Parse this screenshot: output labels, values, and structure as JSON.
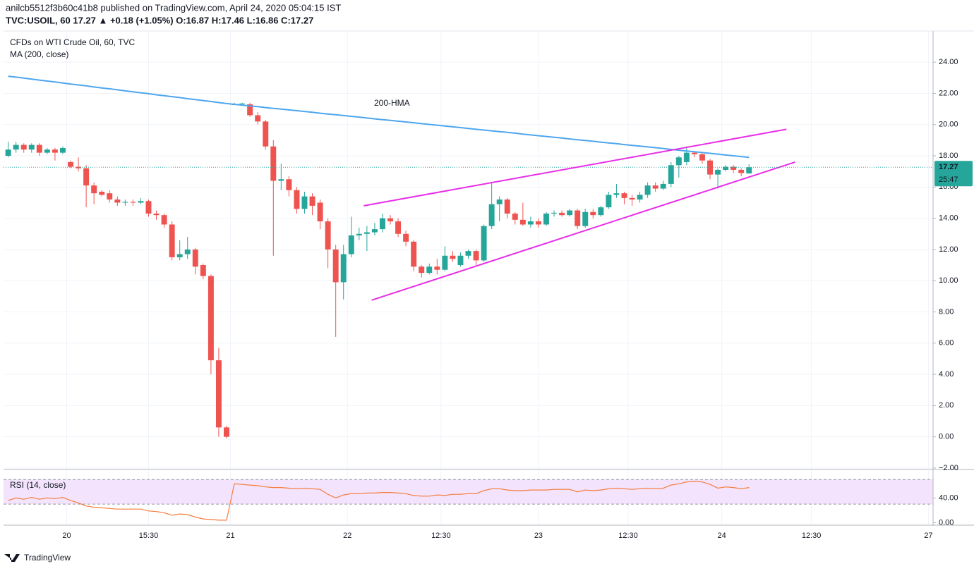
{
  "header": {
    "line1": "anilcb5512f3b60c41b8 published on TradingView.com, April 24, 2020 05:04:15 IST",
    "line2": "TVC:USOIL, 60  17.27 ▲ +0.18 (+1.05%)  O:16.87  H:17.46  L:16.86  C:17.27"
  },
  "footer": {
    "brand": "TradingView"
  },
  "chart_data": {
    "type": "candlestick",
    "legend": [
      "CFDs on WTI Crude Oil, 60, TVC",
      "MA (200, close)"
    ],
    "annotation": "200-HMA",
    "countdown": "25:47",
    "up_color": "#26a69a",
    "down_color": "#ef5350",
    "xlim": [
      -0.6,
      118.6
    ],
    "xticks": [
      {
        "value": 7.5,
        "label": "20"
      },
      {
        "value": 18,
        "label": "15:30"
      },
      {
        "value": 28.5,
        "label": "21"
      },
      {
        "value": 43.5,
        "label": "22"
      },
      {
        "value": 55.5,
        "label": "12:30"
      },
      {
        "value": 68,
        "label": "23"
      },
      {
        "value": 79.5,
        "label": "12:30"
      },
      {
        "value": 91.5,
        "label": "24"
      },
      {
        "value": 103,
        "label": "12:30"
      },
      {
        "value": 118,
        "label": "27"
      }
    ],
    "ylim": [
      -2.05,
      25.95
    ],
    "yticks": [
      {
        "value": -2,
        "label": "−2.00"
      },
      {
        "value": 0,
        "label": "0.00"
      },
      {
        "value": 2,
        "label": "2.00"
      },
      {
        "value": 4,
        "label": "4.00"
      },
      {
        "value": 6,
        "label": "6.00"
      },
      {
        "value": 8,
        "label": "8.00"
      },
      {
        "value": 10,
        "label": "10.00"
      },
      {
        "value": 12,
        "label": "12.00"
      },
      {
        "value": 14,
        "label": "14.00"
      },
      {
        "value": 16,
        "label": "16.00"
      },
      {
        "value": 18,
        "label": "18.00"
      },
      {
        "value": 20,
        "label": "20.00"
      },
      {
        "value": 22,
        "label": "22.00"
      },
      {
        "value": 24,
        "label": "24.00"
      }
    ],
    "grid": true,
    "open": [
      18.0,
      18.4,
      18.7,
      18.4,
      18.7,
      18.2,
      18.4,
      18.2,
      17.6,
      17.3,
      17.2,
      16.1,
      15.7,
      15.6,
      15.2,
      15.0,
      15.05,
      15.0,
      15.1,
      14.3,
      14.2,
      13.6,
      11.5,
      11.7,
      12.0,
      11.0,
      10.3,
      4.9,
      0.6,
      21.3,
      21.3,
      21.3,
      20.6,
      20.2,
      18.6,
      16.4,
      16.5,
      15.8,
      14.6,
      15.4,
      15.0,
      13.8,
      12.0,
      9.9,
      11.7,
      12.9,
      13.0,
      13.1,
      13.3,
      14.0,
      13.8,
      13.0,
      12.5,
      10.9,
      10.5,
      10.9,
      10.7,
      11.6,
      11.0,
      11.6,
      11.9,
      11.3,
      13.5,
      14.9,
      15.2,
      14.3,
      13.9,
      13.6,
      13.8,
      13.6,
      14.3,
      14.35,
      14.2,
      14.5,
      13.5,
      14.4,
      14.2,
      14.7,
      15.5,
      15.6,
      15.3,
      15.2,
      15.5,
      16.1,
      15.9,
      16.2,
      17.4,
      17.6,
      18.2,
      18.1,
      17.7,
      16.8,
      17.1,
      17.3,
      17.1,
      16.87
    ],
    "high": [
      18.9,
      18.9,
      18.8,
      18.8,
      18.8,
      18.5,
      18.5,
      18.6,
      17.7,
      17.9,
      17.4,
      16.3,
      15.8,
      15.8,
      15.4,
      15.2,
      15.2,
      15.3,
      15.2,
      14.5,
      14.3,
      13.8,
      12.6,
      12.8,
      12.1,
      11.1,
      10.4,
      5.7,
      0.7,
      21.4,
      21.4,
      21.4,
      20.8,
      20.3,
      19.0,
      17.5,
      16.7,
      16.0,
      15.7,
      15.6,
      15.2,
      14.0,
      12.3,
      12.3,
      14.1,
      13.4,
      13.5,
      13.7,
      14.3,
      14.2,
      14.0,
      13.2,
      12.6,
      11.0,
      11.1,
      11.4,
      12.2,
      11.9,
      11.8,
      12.0,
      12.0,
      13.6,
      16.3,
      15.4,
      15.3,
      14.4,
      15.0,
      14.1,
      14.0,
      14.4,
      14.5,
      14.5,
      14.6,
      14.6,
      14.6,
      14.6,
      14.8,
      15.7,
      16.2,
      15.7,
      15.5,
      15.7,
      16.3,
      16.3,
      16.4,
      17.6,
      18.0,
      18.6,
      18.3,
      18.2,
      17.8,
      17.2,
      17.4,
      17.4,
      17.2,
      17.46
    ],
    "low": [
      17.9,
      18.2,
      18.2,
      18.2,
      18.0,
      18.1,
      17.7,
      18.1,
      17.2,
      17.0,
      14.7,
      14.9,
      15.4,
      15.0,
      14.8,
      14.8,
      14.8,
      14.9,
      14.1,
      13.9,
      13.4,
      11.3,
      11.3,
      11.4,
      10.4,
      10.1,
      4.0,
      0.0,
      -0.1,
      21.3,
      21.3,
      20.5,
      20.0,
      18.4,
      11.6,
      15.8,
      15.4,
      14.3,
      14.3,
      14.2,
      13.3,
      10.8,
      6.4,
      8.8,
      11.5,
      12.6,
      11.9,
      12.9,
      13.1,
      13.6,
      12.8,
      12.2,
      10.6,
      10.2,
      10.4,
      10.4,
      10.6,
      11.2,
      10.9,
      11.4,
      11.0,
      11.2,
      13.3,
      13.8,
      14.0,
      13.6,
      13.5,
      13.4,
      13.4,
      13.5,
      14.1,
      14.1,
      14.1,
      13.3,
      13.4,
      14.0,
      14.1,
      14.6,
      15.3,
      14.9,
      14.8,
      15.0,
      15.3,
      15.7,
      15.8,
      16.0,
      16.6,
      17.4,
      17.9,
      17.5,
      16.5,
      15.9,
      17.0,
      16.9,
      16.7,
      16.86
    ],
    "close": [
      18.4,
      18.7,
      18.4,
      18.7,
      18.2,
      18.4,
      18.2,
      18.5,
      17.3,
      17.2,
      16.1,
      15.6,
      15.5,
      15.2,
      15.0,
      15.05,
      15.0,
      15.1,
      14.3,
      14.2,
      13.6,
      11.5,
      11.7,
      12.0,
      10.9,
      10.3,
      4.9,
      0.6,
      0.0,
      21.3,
      21.35,
      20.6,
      20.2,
      18.6,
      16.4,
      16.5,
      15.8,
      14.6,
      15.4,
      14.8,
      13.8,
      12.0,
      9.9,
      11.7,
      12.9,
      13.0,
      13.1,
      13.3,
      14.0,
      13.8,
      13.0,
      12.5,
      10.9,
      10.5,
      10.9,
      10.7,
      11.6,
      11.4,
      11.6,
      11.9,
      11.3,
      13.5,
      14.9,
      15.2,
      14.3,
      13.9,
      13.6,
      13.8,
      13.6,
      14.3,
      14.35,
      14.2,
      14.5,
      13.5,
      14.4,
      14.2,
      14.7,
      15.5,
      15.6,
      15.3,
      15.2,
      15.5,
      16.1,
      15.9,
      16.2,
      17.4,
      17.9,
      18.2,
      18.1,
      17.7,
      16.8,
      17.1,
      17.3,
      17.1,
      16.9,
      17.27
    ],
    "ma": {
      "color": "#4ea6ee",
      "values": [
        23.1,
        23.04,
        22.98,
        22.91,
        22.85,
        22.79,
        22.73,
        22.66,
        22.6,
        22.54,
        22.48,
        22.41,
        22.35,
        22.29,
        22.23,
        22.16,
        22.1,
        22.04,
        21.98,
        21.91,
        21.85,
        21.79,
        21.73,
        21.66,
        21.6,
        21.54,
        21.48,
        21.41,
        21.35,
        21.3,
        21.25,
        21.2,
        21.15,
        21.09,
        21.04,
        20.99,
        20.94,
        20.89,
        20.84,
        20.79,
        20.73,
        20.68,
        20.63,
        20.58,
        20.53,
        20.48,
        20.42,
        20.37,
        20.32,
        20.27,
        20.22,
        20.17,
        20.12,
        20.06,
        20.01,
        19.96,
        19.91,
        19.86,
        19.81,
        19.75,
        19.7,
        19.65,
        19.6,
        19.55,
        19.5,
        19.45,
        19.39,
        19.34,
        19.29,
        19.24,
        19.19,
        19.14,
        19.08,
        19.03,
        18.98,
        18.93,
        18.88,
        18.83,
        18.78,
        18.72,
        18.67,
        18.62,
        18.57,
        18.52,
        18.47,
        18.41,
        18.36,
        18.31,
        18.26,
        18.21,
        18.16,
        18.11,
        18.05,
        18.0,
        17.95,
        17.9
      ]
    },
    "trendlines": {
      "color": "#e82ee8",
      "lines": [
        {
          "x": [
            45.6,
            99.8
          ],
          "values": [
            14.8,
            19.7
          ]
        },
        {
          "x": [
            46.6,
            100.9
          ],
          "values": [
            8.75,
            17.6
          ]
        }
      ]
    },
    "rsi": {
      "label": "RSI (14, close)",
      "color": "#f57c3b",
      "band_color": "#f3e3fc",
      "bands": [
        30,
        70
      ],
      "ylim": [
        -3,
        84
      ],
      "yticks": [
        {
          "value": 0,
          "label": "0.00"
        },
        {
          "value": 40,
          "label": "40.00"
        }
      ],
      "values": [
        36,
        40,
        38,
        41,
        38,
        40,
        39,
        41,
        36,
        32,
        27,
        25,
        24,
        23,
        22,
        22,
        22,
        22,
        19,
        18,
        16,
        12,
        14,
        13,
        9,
        6,
        5,
        4,
        4,
        63,
        62,
        61,
        60,
        58,
        57,
        57,
        56,
        55,
        56,
        55,
        54,
        46,
        40,
        45,
        47,
        47,
        48,
        48,
        49,
        49,
        48,
        47,
        44,
        43,
        43,
        45,
        44,
        46,
        46,
        47,
        47,
        52,
        55,
        55,
        53,
        52,
        52,
        53,
        53,
        53,
        54,
        54,
        54,
        50,
        53,
        52,
        53,
        55,
        56,
        55,
        54,
        55,
        56,
        55,
        56,
        61,
        63,
        66,
        67,
        66,
        62,
        56,
        58,
        57,
        55,
        57
      ]
    }
  }
}
